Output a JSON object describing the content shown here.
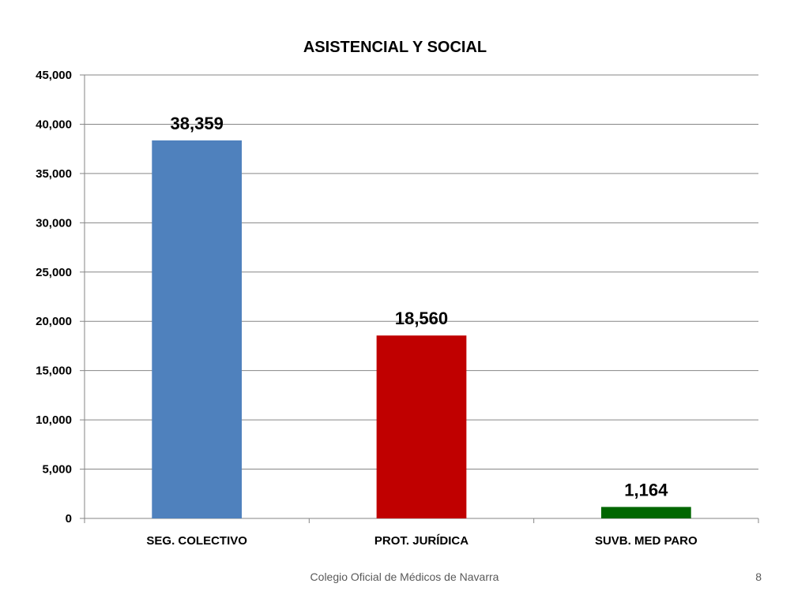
{
  "chart_data": {
    "type": "bar",
    "title": "ASISTENCIAL Y SOCIAL",
    "categories": [
      "SEG. COLECTIVO",
      "PROT. JURÍDICA",
      "SUVB. MED PARO"
    ],
    "values": [
      38359,
      18560,
      1164
    ],
    "data_labels": [
      "38,359",
      "18,560",
      "1,164"
    ],
    "bar_colors": [
      "#4F81BD",
      "#C00000",
      "#006600"
    ],
    "ylim": [
      0,
      45000
    ],
    "yticks": [
      0,
      5000,
      10000,
      15000,
      20000,
      25000,
      30000,
      35000,
      40000,
      45000
    ],
    "ytick_labels": [
      "0",
      "5,000",
      "10,000",
      "15,000",
      "20,000",
      "25,000",
      "30,000",
      "35,000",
      "40,000",
      "45,000"
    ],
    "grid": true,
    "legend": "none",
    "xlabel": "",
    "ylabel": ""
  },
  "footer": {
    "text": "Colegio Oficial de Médicos de Navarra",
    "page_number": "8"
  }
}
